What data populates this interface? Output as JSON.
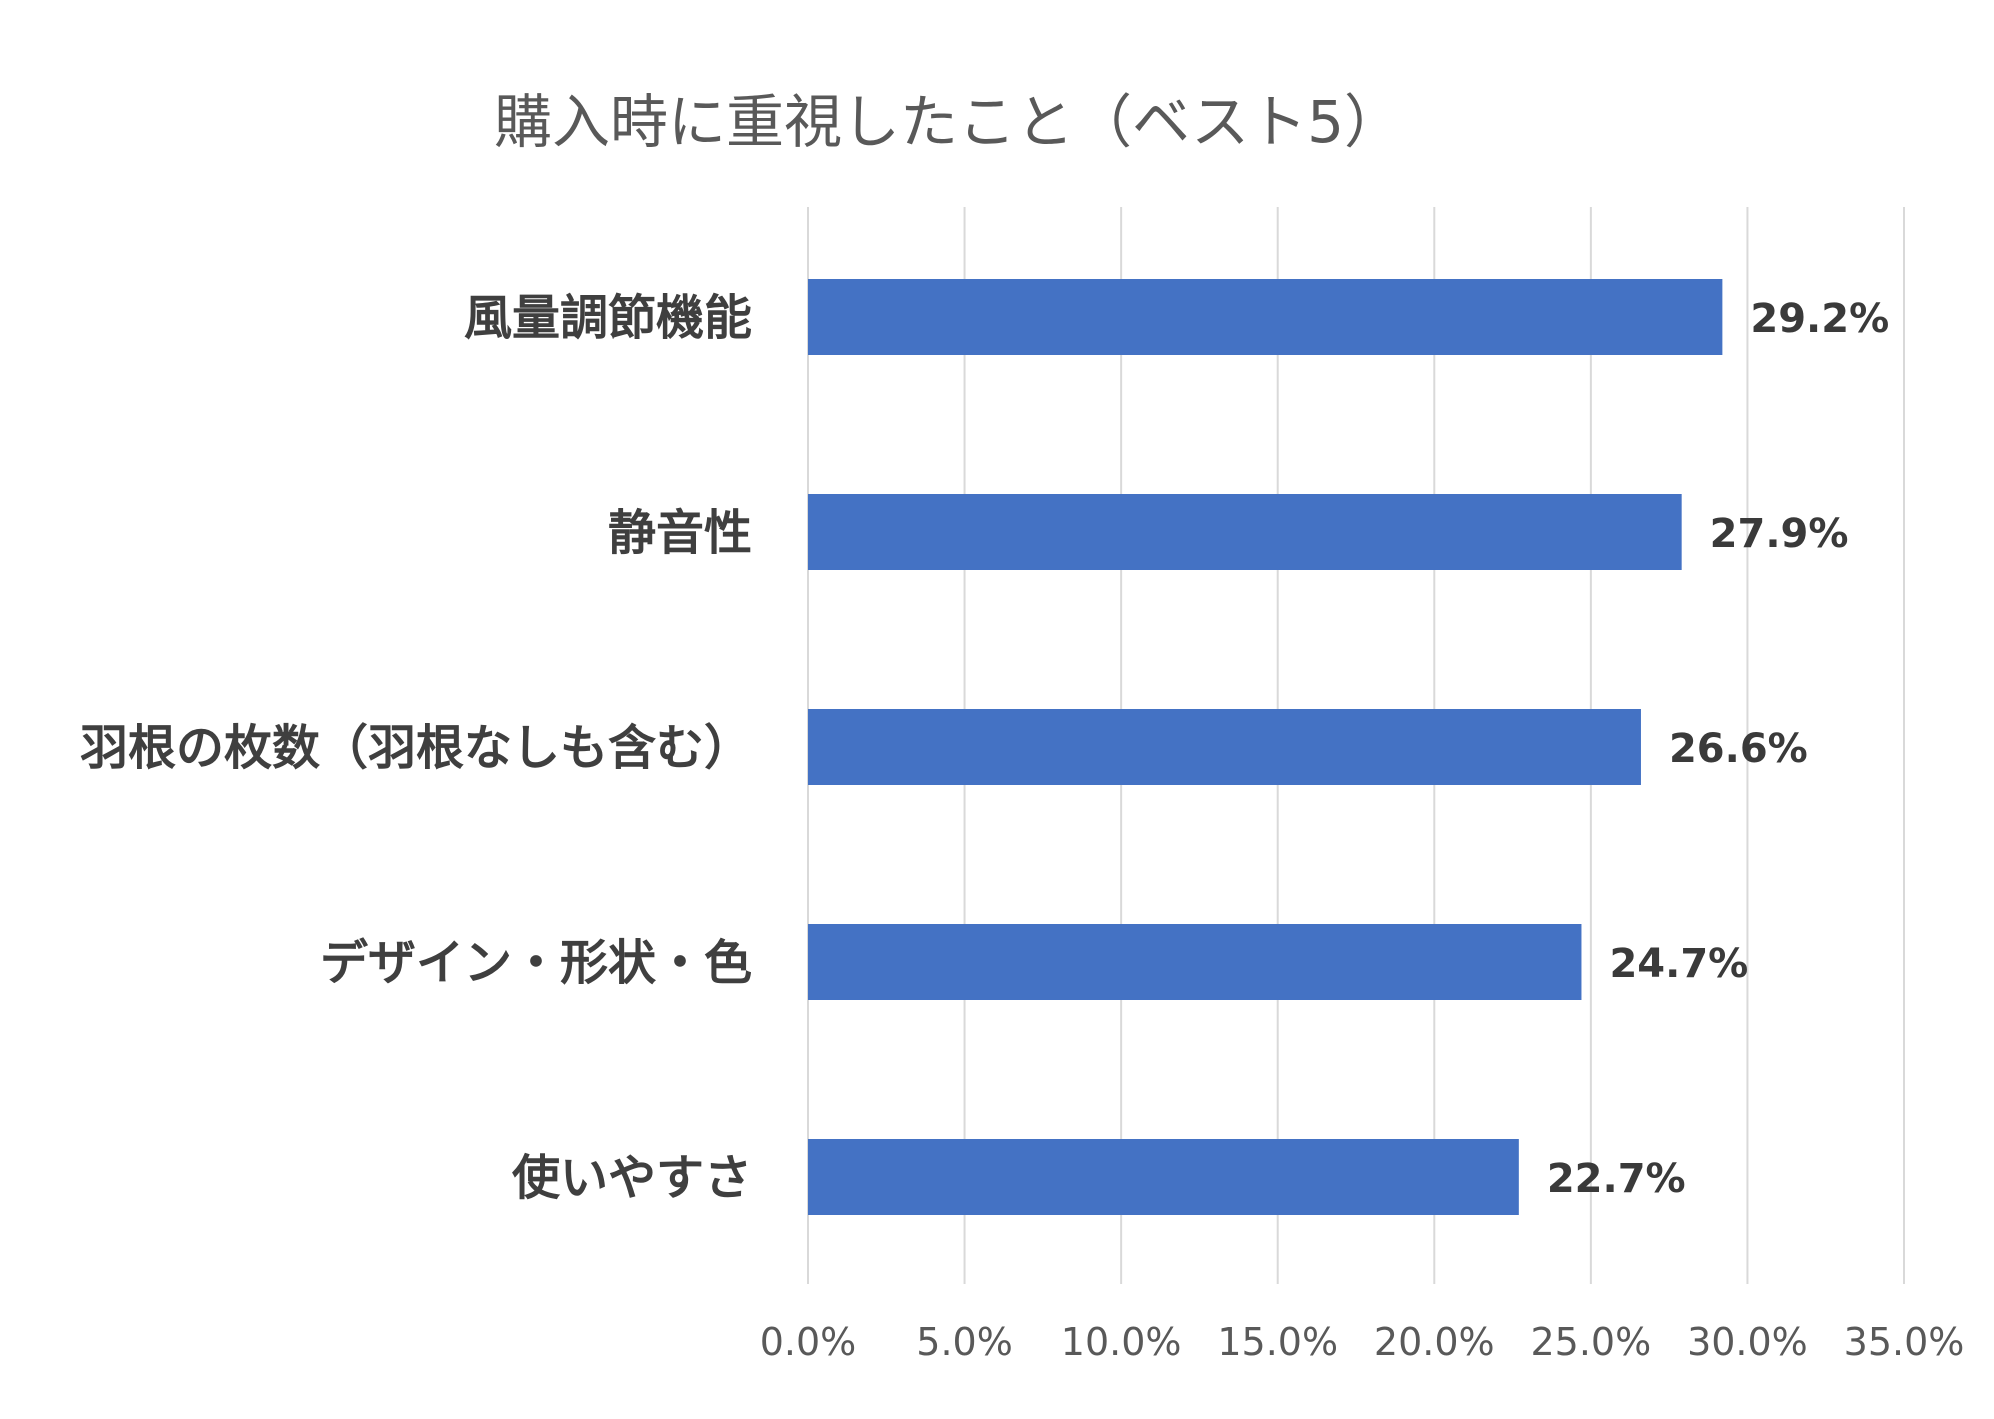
{
  "chart_data": {
    "type": "bar",
    "orientation": "horizontal",
    "title": "購入時に重視したこと（ベスト5）",
    "categories": [
      "風量調節機能",
      "静音性",
      "羽根の枚数（羽根なしも含む）",
      "デザイン・形状・色",
      "使いやすさ"
    ],
    "values": [
      29.2,
      27.9,
      26.6,
      24.7,
      22.7
    ],
    "data_labels": [
      "29.2%",
      "27.9%",
      "26.6%",
      "24.7%",
      "22.7%"
    ],
    "x_ticks": [
      "0.0%",
      "5.0%",
      "10.0%",
      "15.0%",
      "20.0%",
      "25.0%",
      "30.0%",
      "35.0%"
    ],
    "xlim": [
      0,
      35
    ],
    "xlabel": "",
    "ylabel": "",
    "grid": "vertical",
    "legend": "none",
    "bar_color": "#4472c4"
  }
}
